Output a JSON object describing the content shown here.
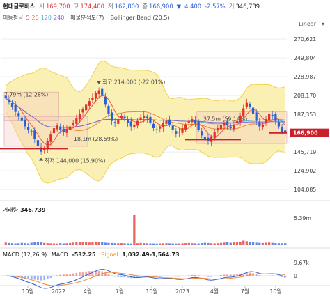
{
  "header": {
    "name": "현대글로비스",
    "open_label": "시",
    "open": "169,700",
    "high_label": "고",
    "high": "174,400",
    "low_label": "저",
    "low": "162,800",
    "close_label": "종",
    "close": "166,900",
    "change_arrow": "▼",
    "change": "4,400",
    "change_pct": "-2.57%",
    "volume_label": "거",
    "volume": "346,739"
  },
  "indicators": {
    "ma_title": "이동평균",
    "ma5": "5",
    "ma20": "20",
    "ma120": "120",
    "ma240": "240",
    "sub_label": "매물분석도(7)",
    "bollinger": "Bollinger Band (20,5)",
    "scale_mode": "Linear",
    "collapse_icon": "chevron-down-icon"
  },
  "colors": {
    "up": "#e0312e",
    "down": "#2b5fd9",
    "band_fill": "#fbf0b4",
    "band_line": "#f1d24b",
    "ma5": "#e8574d",
    "ma20": "#e8883a",
    "ma120": "#4bb3c9",
    "ma240": "#8a63d2",
    "profile": "#f3c9c4",
    "support": "#c9202a",
    "macd": "#2f5fd2",
    "signal": "#f08a3b"
  },
  "chart_data": [
    {
      "type": "candlestick",
      "x_tick_labels": [
        "10월",
        "2022",
        "4월",
        "7월",
        "10월",
        "2023",
        "4월",
        "7월",
        "10월"
      ],
      "y_tick_labels": [
        "270,621",
        "249,804",
        "228,987",
        "208,170",
        "187,353",
        "166,900",
        "145,719",
        "124,902",
        "104,085"
      ],
      "y_ticks": [
        270621,
        249804,
        228987,
        208170,
        187353,
        145719,
        124902,
        104085
      ],
      "ylim": [
        98000,
        280000
      ],
      "last_price": 166900,
      "last_price_label": "166,900",
      "closes": [
        205000,
        201000,
        196000,
        190000,
        185000,
        180000,
        174000,
        170000,
        168000,
        160000,
        152000,
        146000,
        150000,
        158000,
        165000,
        172000,
        175000,
        170000,
        168000,
        171000,
        174000,
        178000,
        183000,
        188000,
        193000,
        198000,
        202000,
        206000,
        211000,
        214000,
        208000,
        198000,
        188000,
        180000,
        178000,
        182000,
        186000,
        183000,
        178000,
        174000,
        176000,
        180000,
        184000,
        186000,
        183000,
        178000,
        172000,
        170000,
        174000,
        178000,
        180000,
        176000,
        170000,
        166000,
        168000,
        172000,
        176000,
        180000,
        182000,
        178000,
        170000,
        164000,
        160000,
        158000,
        162000,
        168000,
        172000,
        176000,
        178000,
        175000,
        172000,
        176000,
        180000,
        186000,
        194000,
        200000,
        196000,
        188000,
        180000,
        174000,
        176000,
        182000,
        188000,
        186000,
        180000,
        174000,
        168000,
        166900
      ],
      "price_boxes": [
        {
          "label": "7.79m (12.28%)"
        },
        {
          "label": "18.1m (28.59%)"
        },
        {
          "label": "37.5m (59.14%)"
        }
      ],
      "high_annotation": "최고 214,000 (-22.01%)",
      "low_annotation": "최저 144,000 (15.90%)",
      "high_annotation_icon": "triangle-down-icon",
      "low_annotation_icon": "triangle-up-icon"
    },
    {
      "type": "bar",
      "title": "거래량",
      "value_label": "346,739",
      "axis_label": "5.39m",
      "values": [
        0.45,
        0.38,
        0.35,
        0.3,
        0.33,
        0.4,
        0.35,
        0.3,
        0.42,
        0.55,
        0.6,
        0.48,
        0.4,
        0.36,
        0.32,
        0.3,
        0.28,
        0.35,
        0.3,
        0.34,
        0.38,
        0.45,
        0.52,
        0.48,
        0.6,
        0.5,
        0.46,
        0.55,
        0.62,
        0.58,
        0.5,
        0.44,
        0.4,
        0.38,
        0.35,
        0.33,
        0.36,
        0.32,
        0.3,
        0.28,
        5.39,
        0.34,
        0.4,
        0.36,
        0.32,
        0.3,
        0.29,
        0.27,
        0.3,
        0.33,
        0.35,
        0.32,
        0.3,
        0.28,
        0.3,
        0.32,
        0.35,
        0.38,
        0.34,
        0.32,
        0.3,
        0.36,
        0.42,
        0.38,
        0.34,
        0.32,
        0.35,
        0.4,
        0.45,
        0.5,
        0.42,
        0.48,
        0.55,
        0.62,
        0.8,
        0.7,
        0.6,
        0.5,
        0.44,
        0.4,
        0.38,
        0.42,
        0.46,
        0.4,
        0.36,
        0.34,
        0.33,
        0.35
      ]
    },
    {
      "type": "line",
      "title": "MACD (12,26,9)",
      "macd_label": "MACD",
      "macd_value": "-532.25",
      "signal_label": "Signal",
      "signal_value": "1,032.49-1,564.73",
      "axis_top_label": "9.67k",
      "axis_zero_label": "0"
    }
  ]
}
